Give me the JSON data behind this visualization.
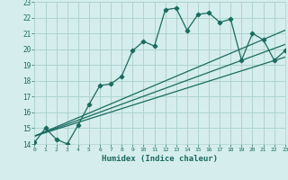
{
  "title": "",
  "xlabel": "Humidex (Indice chaleur)",
  "ylabel": "",
  "bg_color": "#d5edec",
  "grid_color": "#aed4d0",
  "line_color": "#1a6b60",
  "x_ticks": [
    0,
    1,
    2,
    3,
    4,
    5,
    6,
    7,
    8,
    9,
    10,
    11,
    12,
    13,
    14,
    15,
    16,
    17,
    18,
    19,
    20,
    21,
    22,
    23
  ],
  "y_ticks": [
    14,
    15,
    16,
    17,
    18,
    19,
    20,
    21,
    22,
    23
  ],
  "xlim": [
    0,
    23
  ],
  "ylim": [
    14,
    23
  ],
  "main_x": [
    0,
    1,
    2,
    3,
    4,
    5,
    6,
    7,
    8,
    9,
    10,
    11,
    12,
    13,
    14,
    15,
    16,
    17,
    18,
    19,
    20,
    21,
    22,
    23
  ],
  "main_y": [
    14.1,
    15.0,
    14.3,
    14.0,
    15.2,
    16.5,
    17.7,
    17.8,
    18.3,
    19.9,
    20.5,
    20.2,
    22.5,
    22.6,
    21.2,
    22.2,
    22.3,
    21.7,
    21.9,
    19.3,
    21.0,
    20.6,
    19.3,
    19.9
  ],
  "line1_x": [
    0,
    23
  ],
  "line1_y": [
    14.5,
    19.5
  ],
  "line2_x": [
    0,
    23
  ],
  "line2_y": [
    14.5,
    21.2
  ],
  "line3_x": [
    0,
    23
  ],
  "line3_y": [
    14.5,
    20.3
  ]
}
